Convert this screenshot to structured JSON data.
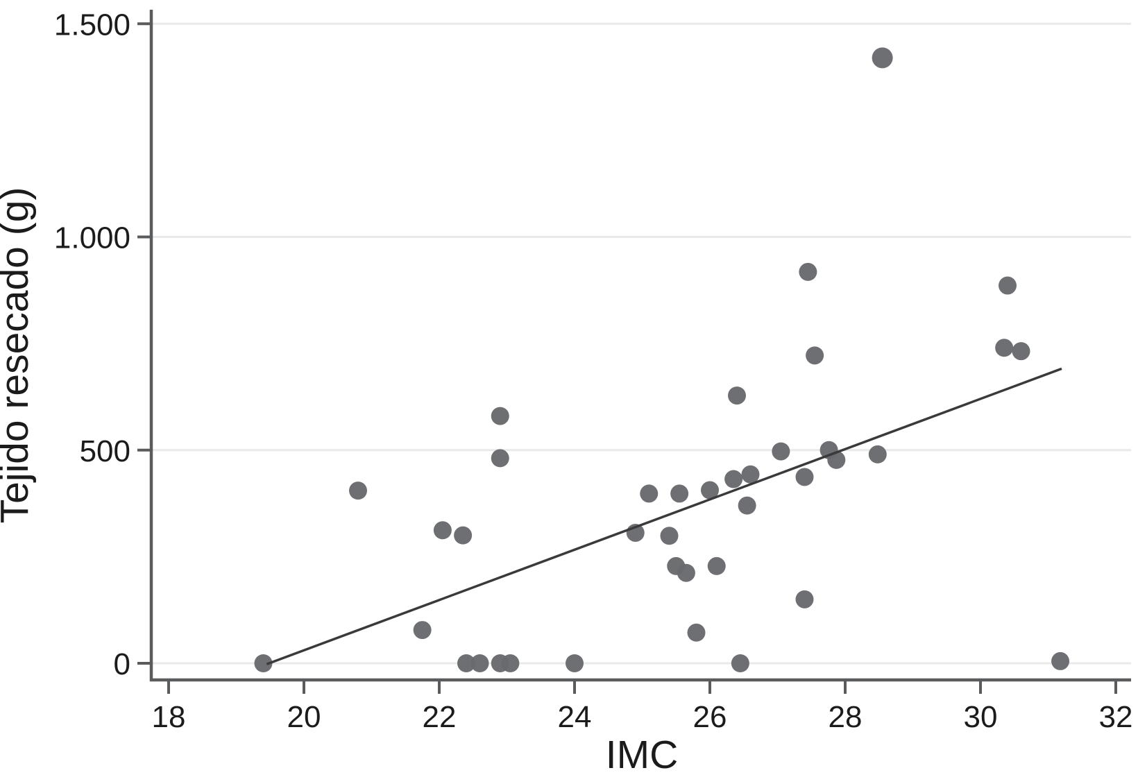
{
  "chart_data": {
    "type": "scatter",
    "title": "",
    "xlabel": "IMC",
    "ylabel": "Tejido resecado (g)",
    "xlim": [
      17.7,
      32.2
    ],
    "ylim": [
      -40,
      1535
    ],
    "grid": "horizontal-only",
    "legend": "none",
    "x_ticks": [
      {
        "value": 18,
        "label": "18"
      },
      {
        "value": 20,
        "label": "20"
      },
      {
        "value": 22,
        "label": "22"
      },
      {
        "value": 24,
        "label": "24"
      },
      {
        "value": 26,
        "label": "26"
      },
      {
        "value": 28,
        "label": "28"
      },
      {
        "value": 30,
        "label": "30"
      },
      {
        "value": 32,
        "label": "32"
      }
    ],
    "y_ticks": [
      {
        "value": 0,
        "label": "0"
      },
      {
        "value": 500,
        "label": "500"
      },
      {
        "value": 1000,
        "label": "1.000"
      },
      {
        "value": 1500,
        "label": "1.500"
      }
    ],
    "points": [
      [
        19.4,
        0
      ],
      [
        20.8,
        405
      ],
      [
        21.75,
        78
      ],
      [
        22.05,
        312
      ],
      [
        22.35,
        300
      ],
      [
        22.4,
        0
      ],
      [
        22.6,
        0
      ],
      [
        22.9,
        0
      ],
      [
        23.05,
        0
      ],
      [
        22.9,
        481
      ],
      [
        22.9,
        580
      ],
      [
        24.0,
        0
      ],
      [
        24.9,
        306
      ],
      [
        25.1,
        398
      ],
      [
        25.4,
        299
      ],
      [
        25.5,
        228
      ],
      [
        25.65,
        212
      ],
      [
        25.55,
        398
      ],
      [
        25.8,
        72
      ],
      [
        26.0,
        406
      ],
      [
        26.1,
        228
      ],
      [
        26.35,
        432
      ],
      [
        26.4,
        628
      ],
      [
        26.45,
        0
      ],
      [
        26.55,
        370
      ],
      [
        26.6,
        443
      ],
      [
        27.05,
        497
      ],
      [
        27.4,
        150
      ],
      [
        27.4,
        437
      ],
      [
        27.45,
        918
      ],
      [
        27.55,
        722
      ],
      [
        27.76,
        500
      ],
      [
        27.87,
        477
      ],
      [
        28.48,
        490
      ],
      [
        28.55,
        1420,
        15
      ],
      [
        30.35,
        740
      ],
      [
        30.4,
        886
      ],
      [
        30.6,
        732
      ],
      [
        31.18,
        5
      ]
    ],
    "trend_line": {
      "x1": 19.45,
      "y1": -2,
      "x2": 31.2,
      "y2": 691
    },
    "colors": {
      "point": "#696a6d",
      "trend_line": "#3a3a3c",
      "axis": "#5a5b5d",
      "gridline": "#e9e9e9",
      "text": "#1b1b1b",
      "background": "#ffffff"
    }
  }
}
